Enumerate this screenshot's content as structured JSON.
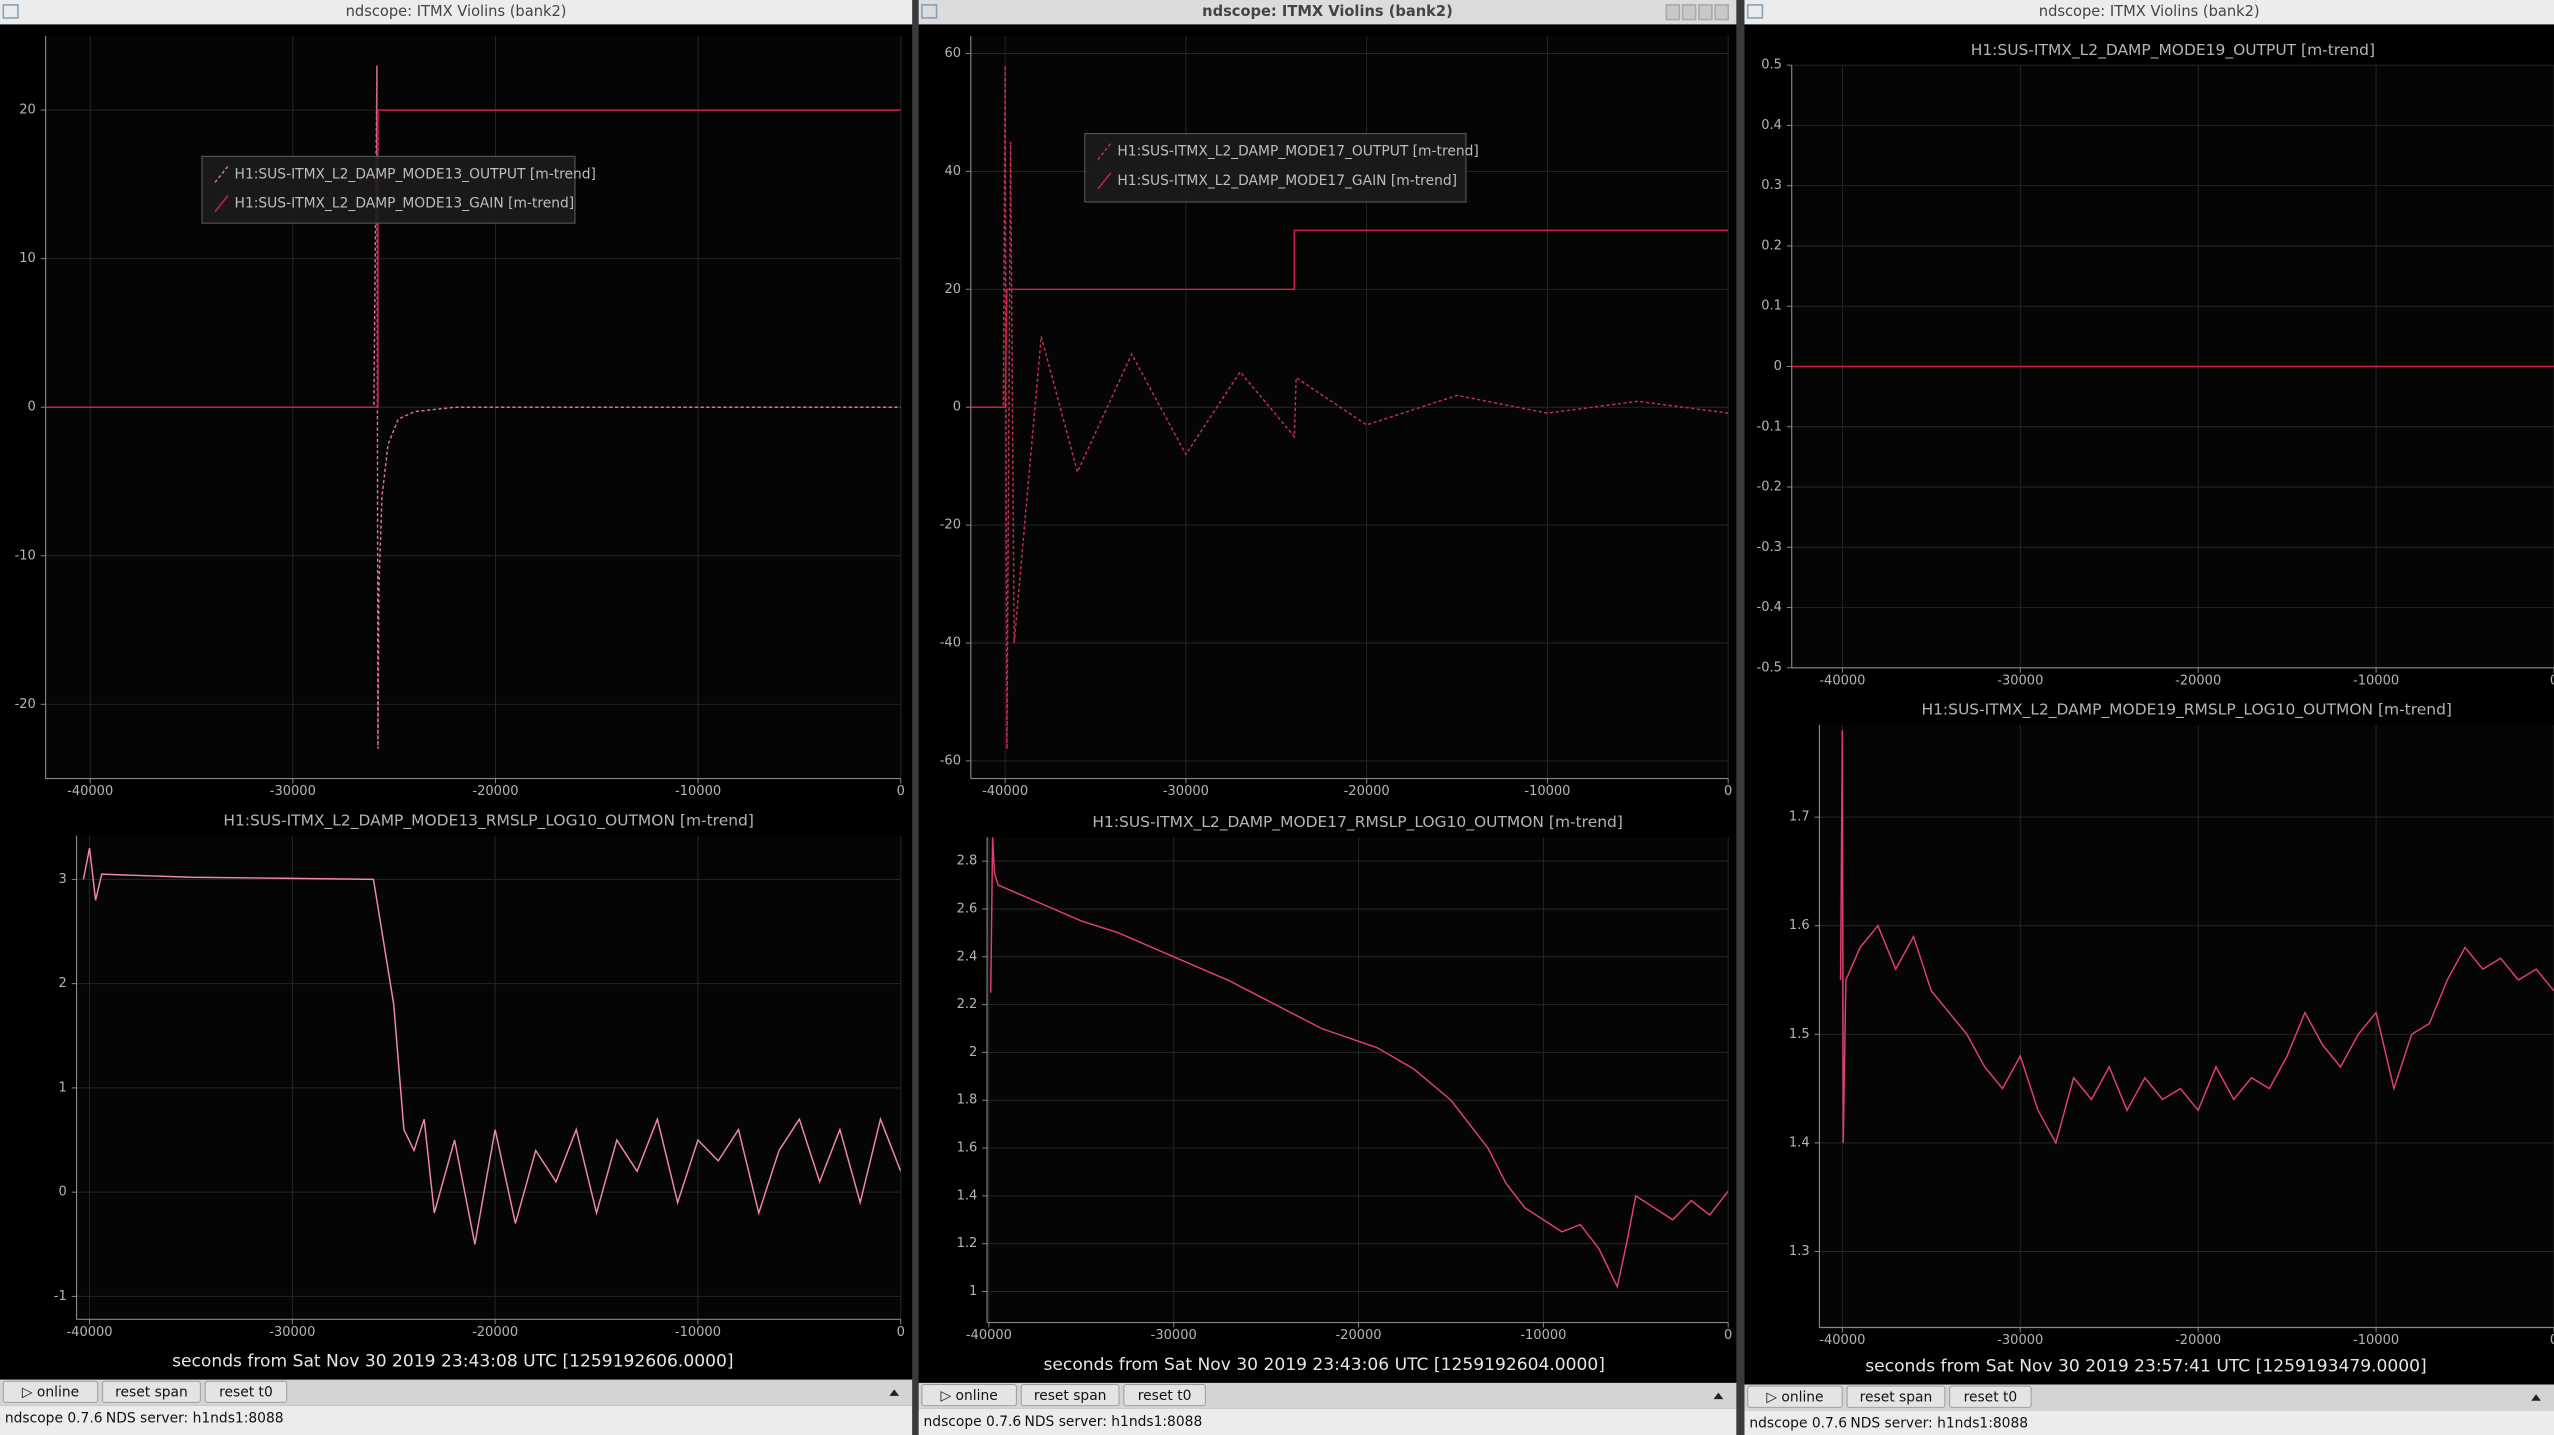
{
  "windows": [
    {
      "title": "ndscope: ITMX Violins (bank2)",
      "plots": [
        {
          "legend": true,
          "grid": true,
          "xlim": [
            -42200,
            0
          ],
          "ylim": [
            -25,
            25
          ],
          "xticks": [
            -40000,
            -30000,
            -20000,
            -10000,
            0
          ],
          "yticks": [
            -20,
            -10,
            0,
            10,
            20
          ],
          "series": [
            {
              "name": "H1:SUS-ITMX_L2_DAMP_MODE13_OUTPUT [m-trend]",
              "color": "#e07090",
              "style": "dashed",
              "x": [
                -42200,
                -26000,
                -25850,
                -25800,
                -25750,
                -25600,
                -25300,
                -24800,
                -24000,
                -22000,
                0
              ],
              "values": [
                0,
                0,
                23,
                -23,
                -12,
                -6,
                -2.5,
                -0.8,
                -0.3,
                0,
                0
              ]
            },
            {
              "name": "H1:SUS-ITMX_L2_DAMP_MODE13_GAIN [m-trend]",
              "color": "#d0204a",
              "style": "solid",
              "x": [
                -42200,
                -25800,
                -25800,
                0
              ],
              "values": [
                0,
                0,
                20,
                20
              ]
            }
          ]
        },
        {
          "title": "H1:SUS-ITMX_L2_DAMP_MODE13_RMSLP_LOG10_OUTMON [m-trend]",
          "grid": true,
          "xlim": [
            -40640,
            0
          ],
          "ylim": [
            -1.22,
            3.42
          ],
          "xticks": [
            -40000,
            -30000,
            -20000,
            -10000,
            0
          ],
          "yticks": [
            -1,
            0,
            1,
            2,
            3
          ],
          "series": [
            {
              "color": "#f088a8",
              "style": "solid",
              "x": [
                -40300,
                -40000,
                -39700,
                -39400,
                -35000,
                -30000,
                -26000,
                -25000,
                -24500,
                -24000,
                -23500,
                -23000,
                -22000,
                -21000,
                -20000,
                -19000,
                -18000,
                -17000,
                -16000,
                -15000,
                -14000,
                -13000,
                -12000,
                -11000,
                -10000,
                -9000,
                -8000,
                -7000,
                -6000,
                -5000,
                -4000,
                -3000,
                -2000,
                -1000,
                0
              ],
              "values": [
                3.0,
                3.3,
                2.8,
                3.05,
                3.02,
                3.01,
                3.0,
                1.8,
                0.6,
                0.4,
                0.7,
                -0.2,
                0.5,
                -0.5,
                0.6,
                -0.3,
                0.4,
                0.1,
                0.6,
                -0.2,
                0.5,
                0.2,
                0.7,
                -0.1,
                0.5,
                0.3,
                0.6,
                -0.2,
                0.4,
                0.7,
                0.1,
                0.6,
                -0.1,
                0.7,
                0.2
              ]
            }
          ]
        }
      ],
      "xlabel": "seconds from Sat Nov 30 2019 23:43:08 UTC [1259192606.0000]",
      "buttons": [
        "▷ online",
        "reset span",
        "reset t0"
      ],
      "status": [
        "ndscope 0.7.6",
        "NDS server: h1nds1:8088"
      ]
    },
    {
      "title": "ndscope: ITMX Violins (bank2)",
      "plots": [
        {
          "legend": true,
          "grid": true,
          "xlim": [
            -41900,
            0
          ],
          "ylim": [
            -63,
            63
          ],
          "xticks": [
            -40000,
            -30000,
            -20000,
            -10000,
            0
          ],
          "yticks": [
            -60,
            -40,
            -20,
            0,
            20,
            40,
            60
          ],
          "series": [
            {
              "name": "H1:SUS-ITMX_L2_DAMP_MODE17_OUTPUT [m-trend]",
              "color": "#c0304e",
              "style": "dashed",
              "x": [
                -41900,
                -40100,
                -40000,
                -39900,
                -39700,
                -39500,
                -38000,
                -36000,
                -33000,
                -30000,
                -27000,
                -24000,
                -23900,
                -20000,
                -15000,
                -10000,
                -5000,
                0
              ],
              "values": [
                0,
                0,
                58,
                -58,
                45,
                -40,
                12,
                -11,
                9,
                -8,
                6,
                -5,
                5,
                -3,
                2,
                -1,
                1,
                -1
              ]
            },
            {
              "name": "H1:SUS-ITMX_L2_DAMP_MODE17_GAIN [m-trend]",
              "color": "#d0204a",
              "style": "solid",
              "x": [
                -41900,
                -40000,
                -39900,
                -24000,
                -24000,
                0
              ],
              "values": [
                0,
                0,
                20,
                20,
                30,
                30
              ]
            }
          ]
        },
        {
          "title": "H1:SUS-ITMX_L2_DAMP_MODE17_RMSLP_LOG10_OUTMON [m-trend]",
          "grid": true,
          "xlim": [
            -40100,
            0
          ],
          "ylim": [
            0.87,
            2.9
          ],
          "xticks": [
            -40000,
            -30000,
            -20000,
            -10000,
            0
          ],
          "yticks": [
            1,
            1.2,
            1.4,
            1.6,
            1.8,
            2,
            2.2,
            2.4,
            2.6,
            2.8
          ],
          "series": [
            {
              "color": "#e0406e",
              "style": "solid",
              "x": [
                -39900,
                -39800,
                -39700,
                -39500,
                -38000,
                -35000,
                -33000,
                -30000,
                -27000,
                -25000,
                -22000,
                -19000,
                -17000,
                -15000,
                -13000,
                -12000,
                -11000,
                -10000,
                -9000,
                -8000,
                -7000,
                -6500,
                -6000,
                -5500,
                -5000,
                -4000,
                -3000,
                -2000,
                -1000,
                0
              ],
              "values": [
                2.25,
                2.9,
                2.75,
                2.7,
                2.65,
                2.55,
                2.5,
                2.4,
                2.3,
                2.22,
                2.1,
                2.02,
                1.93,
                1.8,
                1.6,
                1.45,
                1.35,
                1.3,
                1.25,
                1.28,
                1.18,
                1.1,
                1.02,
                1.2,
                1.4,
                1.35,
                1.3,
                1.38,
                1.32,
                1.42
              ]
            }
          ]
        }
      ],
      "xlabel": "seconds from Sat Nov 30 2019 23:43:06 UTC [1259192604.0000]",
      "buttons": [
        "▷ online",
        "reset span",
        "reset t0"
      ],
      "status": [
        "ndscope 0.7.6",
        "NDS server: h1nds1:8088"
      ]
    },
    {
      "title": "ndscope: ITMX Violins (bank2)",
      "plots": [
        {
          "title": "H1:SUS-ITMX_L2_DAMP_MODE19_OUTPUT [m-trend]",
          "grid": true,
          "xlim": [
            -42850,
            0
          ],
          "ylim": [
            -0.5,
            0.5
          ],
          "xticks": [
            -40000,
            -30000,
            -20000,
            -10000,
            0
          ],
          "yticks": [
            -0.5,
            -0.4,
            -0.3,
            -0.2,
            -0.1,
            0,
            0.1,
            0.2,
            0.3,
            0.4,
            0.5
          ],
          "series": [
            {
              "color": "#d0204a",
              "style": "solid",
              "x": [
                -42850,
                0
              ],
              "values": [
                0,
                0
              ]
            }
          ]
        },
        {
          "title": "H1:SUS-ITMX_L2_DAMP_MODE19_RMSLP_LOG10_OUTMON [m-trend]",
          "grid": true,
          "xlim": [
            -41290,
            0
          ],
          "ylim": [
            1.23,
            1.785
          ],
          "xticks": [
            -40000,
            -30000,
            -20000,
            -10000,
            0
          ],
          "yticks": [
            1.3,
            1.4,
            1.5,
            1.6,
            1.7
          ],
          "series": [
            {
              "color": "#e0406e",
              "style": "solid",
              "x": [
                -40100,
                -40000,
                -39950,
                -39800,
                -39000,
                -38000,
                -37000,
                -36000,
                -35000,
                -34000,
                -33000,
                -32000,
                -31000,
                -30000,
                -29000,
                -28000,
                -27000,
                -26000,
                -25000,
                -24000,
                -23000,
                -22000,
                -21000,
                -20000,
                -19000,
                -18000,
                -17000,
                -16000,
                -15000,
                -14000,
                -13000,
                -12000,
                -11000,
                -10000,
                -9000,
                -8000,
                -7000,
                -6000,
                -5000,
                -4000,
                -3000,
                -2000,
                -1000,
                0
              ],
              "values": [
                1.55,
                1.78,
                1.4,
                1.55,
                1.58,
                1.6,
                1.56,
                1.59,
                1.54,
                1.52,
                1.5,
                1.47,
                1.45,
                1.48,
                1.43,
                1.4,
                1.46,
                1.44,
                1.47,
                1.43,
                1.46,
                1.44,
                1.45,
                1.43,
                1.47,
                1.44,
                1.46,
                1.45,
                1.48,
                1.52,
                1.49,
                1.47,
                1.5,
                1.52,
                1.45,
                1.5,
                1.51,
                1.55,
                1.58,
                1.56,
                1.57,
                1.55,
                1.56,
                1.54
              ]
            }
          ]
        }
      ],
      "xlabel": "seconds from Sat Nov 30 2019 23:57:41 UTC [1259193479.0000]",
      "buttons": [
        "▷ online",
        "reset span",
        "reset t0"
      ],
      "status": [
        "ndscope 0.7.6",
        "NDS server: h1nds1:8088"
      ]
    }
  ]
}
